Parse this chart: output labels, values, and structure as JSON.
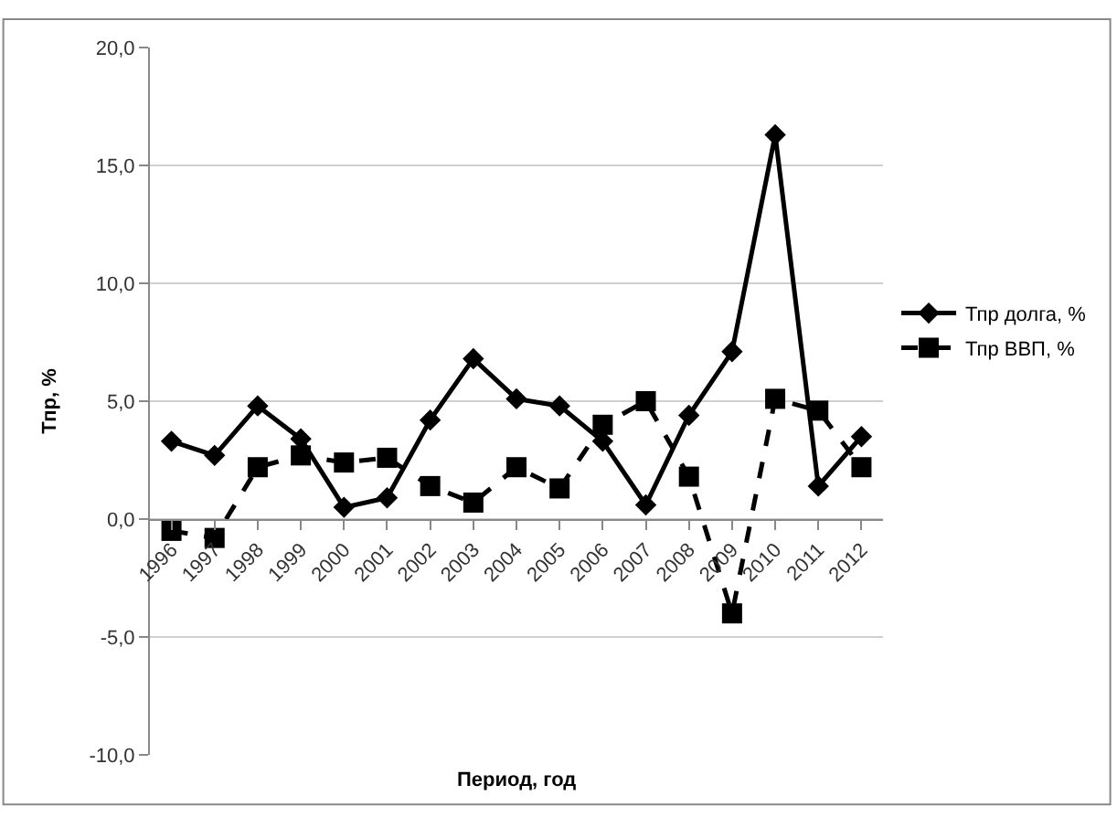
{
  "chart_data": {
    "type": "line",
    "xlabel": "Период, год",
    "ylabel": "Тпр, %",
    "categories": [
      "1996",
      "1997",
      "1998",
      "1999",
      "2000",
      "2001",
      "2002",
      "2003",
      "2004",
      "2005",
      "2006",
      "2007",
      "2008",
      "2009",
      "2010",
      "2011",
      "2012"
    ],
    "series": [
      {
        "name": "Тпр долга, %",
        "color": "#000000",
        "marker": "diamond",
        "line_style": "solid",
        "values": [
          3.3,
          2.7,
          4.8,
          3.4,
          0.5,
          0.9,
          4.2,
          6.8,
          5.1,
          4.8,
          3.3,
          0.6,
          4.4,
          7.1,
          16.3,
          1.4,
          3.5
        ]
      },
      {
        "name": "Тпр ВВП, %",
        "color": "#000000",
        "marker": "square",
        "line_style": "dashed",
        "values": [
          -0.5,
          -0.8,
          2.2,
          2.7,
          2.4,
          2.6,
          1.4,
          0.7,
          2.2,
          1.3,
          4.0,
          5.0,
          1.8,
          -4.0,
          5.1,
          4.6,
          2.2
        ]
      }
    ],
    "ylim": [
      -10,
      20
    ],
    "yticks": [
      {
        "value": -10,
        "label": "-10,0"
      },
      {
        "value": -5,
        "label": "-5,0"
      },
      {
        "value": 0,
        "label": "0,0"
      },
      {
        "value": 5,
        "label": "5,0"
      },
      {
        "value": 10,
        "label": "10,0"
      },
      {
        "value": 15,
        "label": "15,0"
      },
      {
        "value": 20,
        "label": "20,0"
      }
    ],
    "grid": "y",
    "legend": "right"
  }
}
